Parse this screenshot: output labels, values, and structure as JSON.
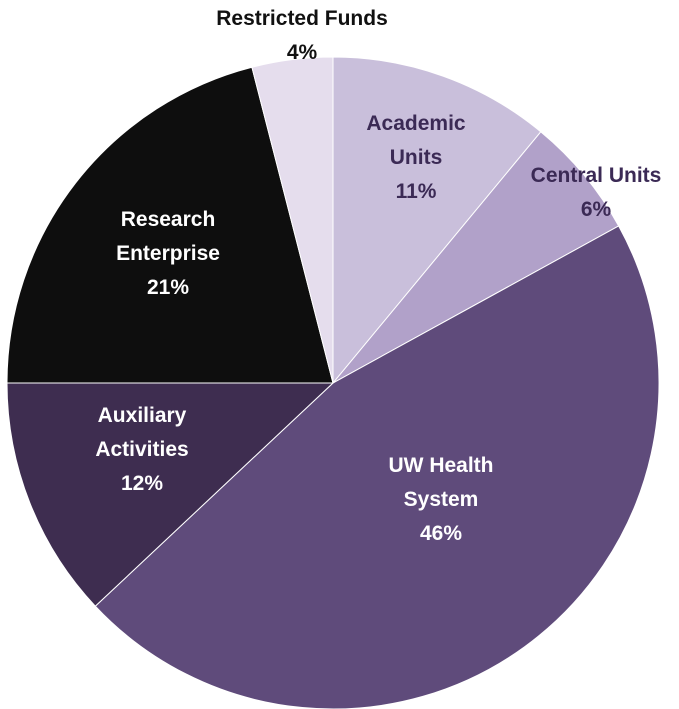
{
  "chart_data": {
    "type": "pie",
    "categories": [
      "Academic Units",
      "Central Units",
      "UW Health System",
      "Auxiliary Activities",
      "Research Enterprise",
      "Restricted Funds"
    ],
    "values": [
      11,
      6,
      46,
      12,
      21,
      4
    ],
    "value_labels": [
      "11%",
      "6%",
      "46%",
      "12%",
      "21%",
      "4%"
    ],
    "colors": [
      "#c9bfdb",
      "#b1a1c9",
      "#5f4b7b",
      "#3e2d50",
      "#0e0e0e",
      "#e5dded"
    ]
  }
}
